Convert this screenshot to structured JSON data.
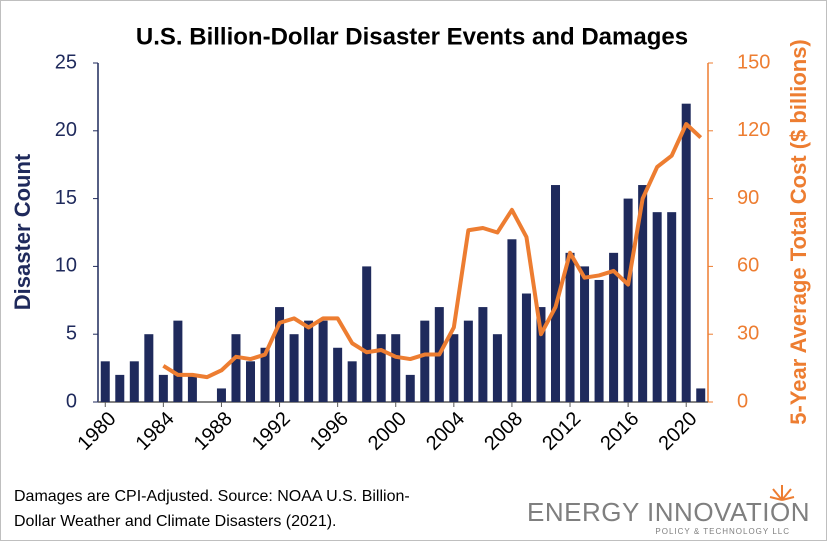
{
  "chart_data": {
    "type": "bar",
    "title": "U.S. Billion-Dollar Disaster Events and Damages",
    "ylabel": "Disaster Count",
    "y2label": "5-Year Average Total Cost ($ billions)",
    "x": [
      1980,
      1981,
      1982,
      1983,
      1984,
      1985,
      1986,
      1987,
      1988,
      1989,
      1990,
      1991,
      1992,
      1993,
      1994,
      1995,
      1996,
      1997,
      1998,
      1999,
      2000,
      2001,
      2002,
      2003,
      2004,
      2005,
      2006,
      2007,
      2008,
      2009,
      2010,
      2011,
      2012,
      2013,
      2014,
      2015,
      2016,
      2017,
      2018,
      2019,
      2020,
      2021
    ],
    "xlim": [
      1979.5,
      2021.5
    ],
    "xticks": [
      1980,
      1984,
      1988,
      1992,
      1996,
      2000,
      2004,
      2008,
      2012,
      2016,
      2020
    ],
    "ylim": [
      0,
      25
    ],
    "yticks": [
      0,
      5,
      10,
      15,
      20,
      25
    ],
    "y2lim": [
      0,
      150
    ],
    "y2ticks": [
      0,
      30,
      60,
      90,
      120,
      150
    ],
    "grid": false,
    "series": [
      {
        "type": "bar",
        "color": "#1f2a5c",
        "values": [
          3,
          2,
          3,
          5,
          2,
          6,
          2,
          0,
          1,
          5,
          3,
          4,
          7,
          5,
          6,
          6,
          4,
          3,
          10,
          5,
          5,
          2,
          6,
          7,
          5,
          6,
          7,
          5,
          12,
          8,
          7,
          16,
          11,
          10,
          9,
          11,
          15,
          16,
          14,
          14,
          22,
          1
        ]
      },
      {
        "type": "line",
        "axis": "y2",
        "color": "#ed7d31",
        "values": [
          null,
          null,
          null,
          null,
          16,
          12,
          12,
          11,
          14,
          20,
          19,
          21,
          35,
          37,
          33,
          37,
          37,
          26,
          22,
          23,
          20,
          19,
          21,
          21,
          33,
          76,
          77,
          75,
          85,
          73,
          30,
          42,
          66,
          55,
          56,
          58,
          52,
          90,
          104,
          109,
          123,
          117
        ]
      }
    ]
  },
  "footnote": {
    "lines": [
      "Damages are CPI-Adjusted. Source: NOAA U.S. Billion-",
      "Dollar Weather and Climate Disasters (2021)."
    ]
  },
  "logo": {
    "name": "ENERGY INNOVATION",
    "tagline": "POLICY & TECHNOLOGY LLC"
  }
}
